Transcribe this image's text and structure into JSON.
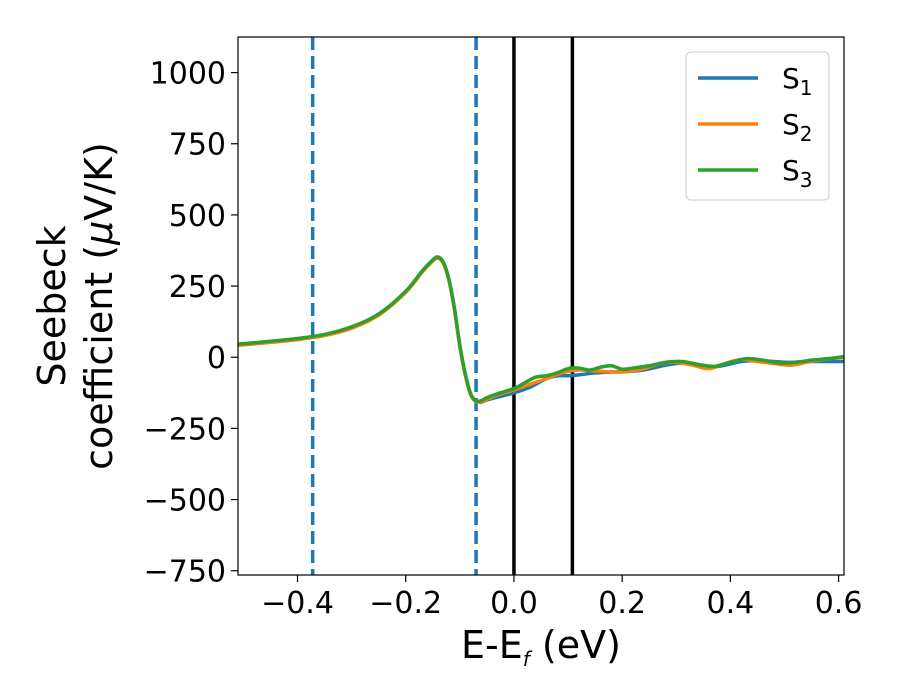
{
  "chart_data": {
    "type": "line",
    "xlabel": {
      "main": "E-E",
      "sub": "f",
      "tail": " (eV)"
    },
    "ylabel": {
      "line1": "Seebeck",
      "line2_prefix": "coefficient  (",
      "line2_mu": "μ",
      "line2_suffix": "V/K)"
    },
    "xlim": [
      -0.51,
      0.61
    ],
    "ylim": [
      -765,
      1125
    ],
    "xticks": [
      -0.4,
      -0.2,
      0.0,
      0.2,
      0.4,
      0.6
    ],
    "xtick_labels": [
      "−0.4",
      "−0.2",
      "0.0",
      "0.2",
      "0.4",
      "0.6"
    ],
    "yticks": [
      -750,
      -500,
      -250,
      0,
      250,
      500,
      750,
      1000
    ],
    "ytick_labels": [
      "−750",
      "−500",
      "−250",
      "0",
      "250",
      "500",
      "750",
      "1000"
    ],
    "grid": false,
    "legend_position": "top-right",
    "vlines": [
      {
        "x": -0.372,
        "style": "dashed",
        "color": "#1f77b4"
      },
      {
        "x": -0.07,
        "style": "dashed",
        "color": "#1f77b4"
      },
      {
        "x": 0.0,
        "style": "solid",
        "color": "#000000"
      },
      {
        "x": 0.108,
        "style": "solid",
        "color": "#000000"
      }
    ],
    "series": [
      {
        "name": "S",
        "sub": "1",
        "color": "#1f77b4",
        "x": [
          -0.51,
          -0.45,
          -0.4,
          -0.35,
          -0.3,
          -0.25,
          -0.2,
          -0.17,
          -0.15,
          -0.14,
          -0.13,
          -0.12,
          -0.11,
          -0.1,
          -0.09,
          -0.08,
          -0.07,
          -0.06,
          -0.05,
          -0.03,
          0.0,
          0.03,
          0.06,
          0.08,
          0.1,
          0.12,
          0.15,
          0.18,
          0.21,
          0.24,
          0.27,
          0.3,
          0.33,
          0.36,
          0.39,
          0.42,
          0.45,
          0.48,
          0.51,
          0.54,
          0.57,
          0.61
        ],
        "y": [
          45,
          55,
          65,
          78,
          105,
          150,
          230,
          300,
          340,
          350,
          330,
          270,
          170,
          40,
          -60,
          -130,
          -155,
          -158,
          -150,
          -140,
          -125,
          -105,
          -75,
          -65,
          -65,
          -62,
          -55,
          -52,
          -50,
          -45,
          -32,
          -22,
          -22,
          -35,
          -28,
          -15,
          -12,
          -15,
          -18,
          -15,
          -15,
          -15
        ]
      },
      {
        "name": "S",
        "sub": "2",
        "color": "#ff7f0e",
        "x": [
          -0.51,
          -0.45,
          -0.4,
          -0.35,
          -0.3,
          -0.25,
          -0.2,
          -0.17,
          -0.15,
          -0.14,
          -0.13,
          -0.12,
          -0.11,
          -0.1,
          -0.09,
          -0.08,
          -0.07,
          -0.06,
          -0.05,
          -0.03,
          0.0,
          0.03,
          0.06,
          0.08,
          0.1,
          0.12,
          0.15,
          0.18,
          0.21,
          0.24,
          0.27,
          0.3,
          0.33,
          0.36,
          0.39,
          0.42,
          0.45,
          0.48,
          0.51,
          0.54,
          0.57,
          0.61
        ],
        "y": [
          42,
          52,
          62,
          76,
          102,
          148,
          228,
          298,
          338,
          348,
          328,
          268,
          168,
          38,
          -62,
          -132,
          -156,
          -157,
          -148,
          -132,
          -115,
          -95,
          -75,
          -60,
          -50,
          -45,
          -48,
          -52,
          -50,
          -40,
          -22,
          -18,
          -28,
          -40,
          -22,
          -8,
          -15,
          -22,
          -28,
          -18,
          -8,
          0
        ]
      },
      {
        "name": "S",
        "sub": "3",
        "color": "#2ca02c",
        "x": [
          -0.51,
          -0.45,
          -0.4,
          -0.35,
          -0.3,
          -0.25,
          -0.2,
          -0.17,
          -0.15,
          -0.14,
          -0.13,
          -0.12,
          -0.11,
          -0.1,
          -0.09,
          -0.08,
          -0.07,
          -0.06,
          -0.05,
          -0.03,
          0.0,
          0.02,
          0.04,
          0.06,
          0.08,
          0.1,
          0.12,
          0.14,
          0.16,
          0.18,
          0.2,
          0.22,
          0.25,
          0.28,
          0.31,
          0.34,
          0.37,
          0.4,
          0.43,
          0.46,
          0.49,
          0.52,
          0.55,
          0.58,
          0.61
        ],
        "y": [
          46,
          56,
          66,
          80,
          107,
          152,
          232,
          302,
          342,
          352,
          332,
          272,
          172,
          42,
          -58,
          -128,
          -154,
          -152,
          -142,
          -128,
          -110,
          -90,
          -70,
          -65,
          -55,
          -40,
          -38,
          -45,
          -35,
          -30,
          -42,
          -38,
          -30,
          -18,
          -15,
          -25,
          -32,
          -18,
          -5,
          -10,
          -20,
          -18,
          -10,
          -5,
          2
        ]
      }
    ]
  }
}
